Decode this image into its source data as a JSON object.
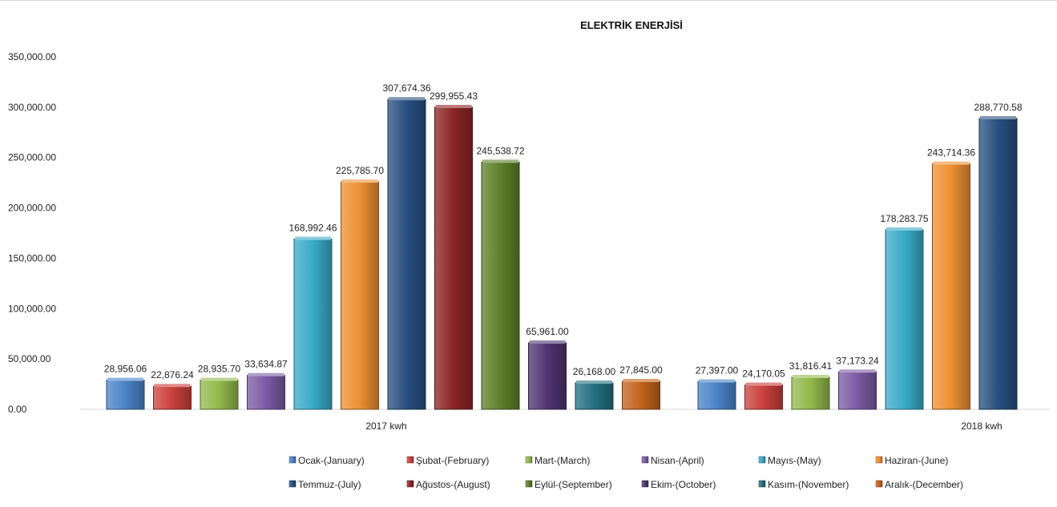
{
  "chart_data": {
    "type": "bar",
    "title": "ELEKTRİK ENERJİSİ",
    "xlabel": "",
    "ylabel": "",
    "ylim": [
      0,
      350000
    ],
    "yticks": [
      "0.00",
      "50,000.00",
      "100,000.00",
      "150,000.00",
      "200,000.00",
      "250,000.00",
      "300,000.00",
      "350,000.00"
    ],
    "categories": [
      "2017 kwh",
      "2018 kwh"
    ],
    "legend_position": "bottom",
    "grid": false,
    "series": [
      {
        "name": "Ocak-(January)",
        "color": "#4a83c8",
        "values": [
          28956.06,
          27397.0
        ],
        "labels": [
          "28,956.06",
          "27,397.00"
        ]
      },
      {
        "name": "Şubat-(February)",
        "color": "#c9403c",
        "values": [
          22876.24,
          24170.05
        ],
        "labels": [
          "22,876.24",
          "24,170.05"
        ]
      },
      {
        "name": "Mart-(March)",
        "color": "#92b94b",
        "values": [
          28935.7,
          31816.41
        ],
        "labels": [
          "28,935.70",
          "31,816.41"
        ]
      },
      {
        "name": "Nisan-(April)",
        "color": "#7b5ba5",
        "values": [
          33634.87,
          37173.24
        ],
        "labels": [
          "33,634.87",
          "37,173.24"
        ]
      },
      {
        "name": "Mayıs-(May)",
        "color": "#3aaac8",
        "values": [
          168992.46,
          178283.75
        ],
        "labels": [
          "168,992.46",
          "178,283.75"
        ]
      },
      {
        "name": "Haziran-(June)",
        "color": "#ee8f32",
        "values": [
          225785.7,
          243714.36
        ],
        "labels": [
          "225,785.70",
          "243,714.36"
        ]
      },
      {
        "name": "Temmuz-(July)",
        "color": "#284f80",
        "values": [
          307674.36,
          288770.58
        ],
        "labels": [
          "307,674.36",
          "288,770.58"
        ]
      },
      {
        "name": "Ağustos-(August)",
        "color": "#8a2424",
        "values": [
          299955.43,
          null
        ],
        "labels": [
          "299,955.43",
          ""
        ]
      },
      {
        "name": "Eylül-(September)",
        "color": "#5e7f2b",
        "values": [
          245538.72,
          null
        ],
        "labels": [
          "245,538.72",
          ""
        ]
      },
      {
        "name": "Ekim-(October)",
        "color": "#4f3470",
        "values": [
          65961.0,
          null
        ],
        "labels": [
          "65,961.00",
          ""
        ]
      },
      {
        "name": "Kasım-(November)",
        "color": "#236f82",
        "values": [
          26168.0,
          null
        ],
        "labels": [
          "26,168.00",
          ""
        ]
      },
      {
        "name": "Aralık-(December)",
        "color": "#c2621c",
        "values": [
          27845.0,
          null
        ],
        "labels": [
          "27,845.00",
          ""
        ]
      }
    ]
  }
}
